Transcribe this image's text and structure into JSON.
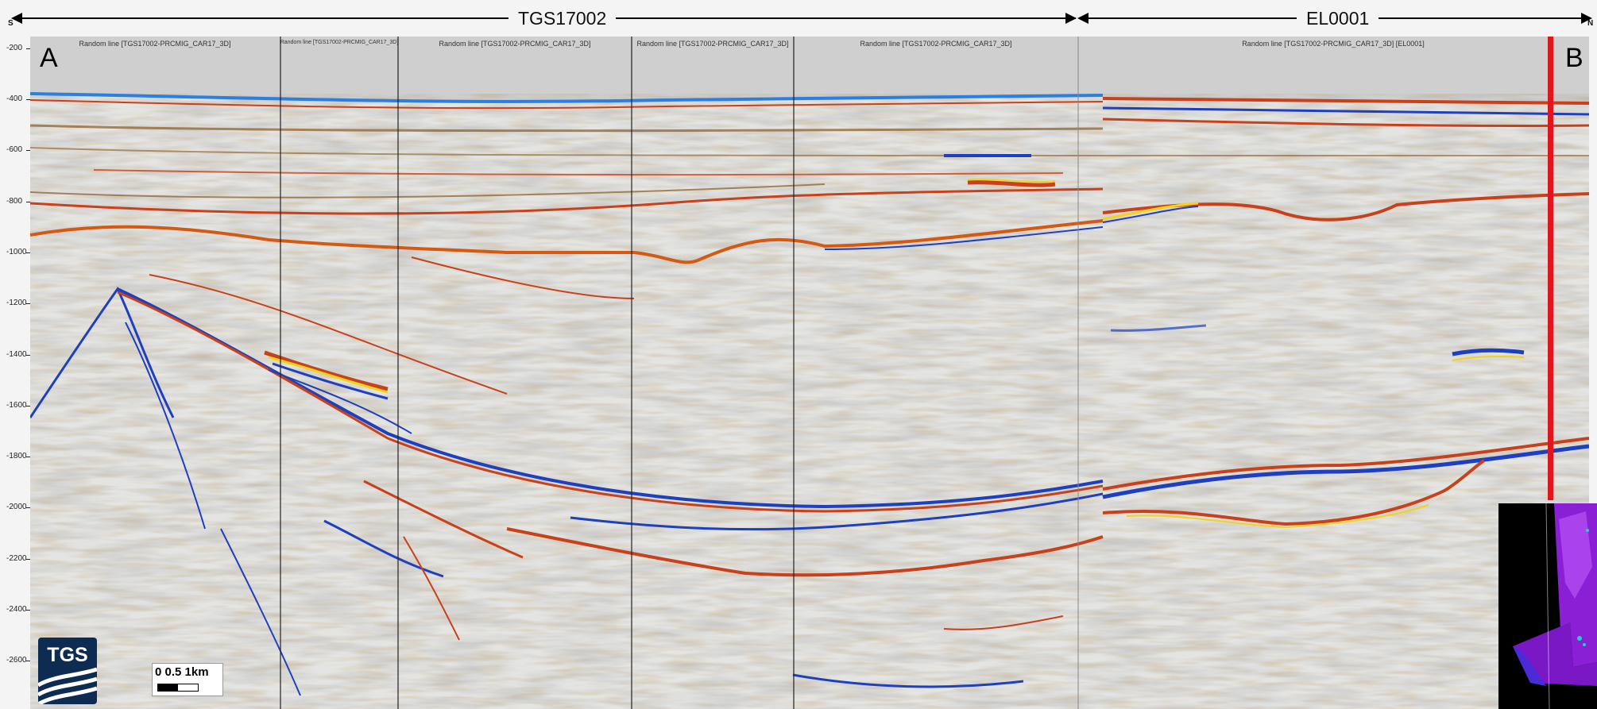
{
  "header": {
    "left_compass": "S",
    "right_compass": "N",
    "surveys": [
      {
        "name": "TGS17002"
      },
      {
        "name": "EL0001"
      }
    ]
  },
  "depth_axis": {
    "ticks": [
      "-200",
      "-400",
      "-600",
      "-800",
      "-1000",
      "-1200",
      "-1400",
      "-1600",
      "-1800",
      "-2000",
      "-2200",
      "-2400",
      "-2600"
    ]
  },
  "panels": [
    "Random line [TGS17002-PRCMIG_CAR17_3D]",
    "Random line [TGS17002-PRCMIG_CAR17_3D]",
    "Random line [TGS17002-PRCMIG_CAR17_3D]",
    "Random line [TGS17002-PRCMIG_CAR17_3D]",
    "Random line [TGS17002-PRCMIG_CAR17_3D]",
    "Random line [TGS17002-PRCMIG_CAR17_3D] [EL0001]"
  ],
  "markers": {
    "start": "A",
    "end": "B"
  },
  "logo": {
    "text": "TGS"
  },
  "scalebar": {
    "label": "0  0.5  1km"
  },
  "colors": {
    "background": "#d0d0d0",
    "positive": "#c8411a",
    "negative": "#1e3fbf",
    "highlight": "#f2d21b",
    "brown": "#8a5a22",
    "well": "#e0161e",
    "logo": "#0e2c52",
    "inset": "#8a1fd6"
  }
}
